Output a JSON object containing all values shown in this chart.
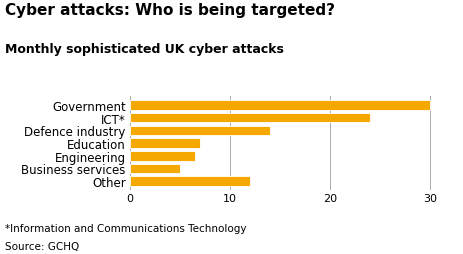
{
  "title": "Cyber attacks: Who is being targeted?",
  "subtitle": "Monthly sophisticated UK cyber attacks",
  "categories": [
    "Government",
    "ICT*",
    "Defence industry",
    "Education",
    "Engineering",
    "Business services",
    "Other"
  ],
  "values": [
    30,
    24,
    14,
    7,
    6.5,
    5,
    12
  ],
  "bar_color": "#F5A800",
  "xlim": [
    0,
    32
  ],
  "xticks": [
    0,
    10,
    20,
    30
  ],
  "footnote1": "*Information and Communications Technology",
  "footnote2": "Source: GCHQ",
  "title_fontsize": 11,
  "subtitle_fontsize": 9,
  "label_fontsize": 8.5,
  "tick_fontsize": 8,
  "footnote_fontsize": 7.5,
  "background_color": "#ffffff",
  "grid_color": "#aaaaaa"
}
